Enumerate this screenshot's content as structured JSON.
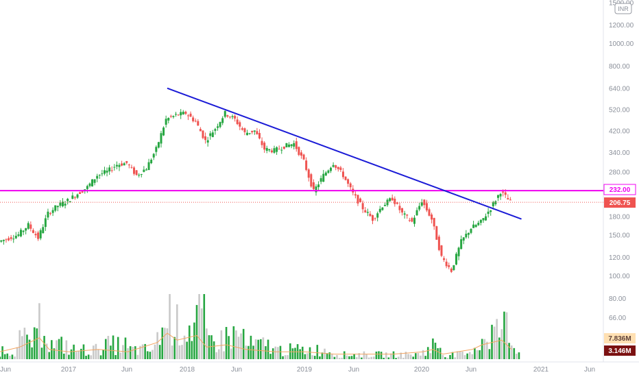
{
  "chart_data": {
    "type": "candlestick",
    "y_scale": "log",
    "currency_label": "INR",
    "price_ticks": [
      {
        "value": 1500,
        "label": "1500.00"
      },
      {
        "value": 1200,
        "label": "1200.00"
      },
      {
        "value": 1000,
        "label": "1000.00"
      },
      {
        "value": 800,
        "label": "800.00"
      },
      {
        "value": 640,
        "label": "640.00"
      },
      {
        "value": 520,
        "label": "520.00"
      },
      {
        "value": 420,
        "label": "420.00"
      },
      {
        "value": 340,
        "label": "340.00"
      },
      {
        "value": 280,
        "label": "280.00"
      },
      {
        "value": 180,
        "label": "180.00"
      },
      {
        "value": 150,
        "label": "150.00"
      },
      {
        "value": 120,
        "label": "120.00"
      },
      {
        "value": 100,
        "label": "100.00"
      },
      {
        "value": 80,
        "label": "80.00"
      },
      {
        "value": 66,
        "label": "66.00"
      }
    ],
    "x_ticks": [
      "Jun",
      "2017",
      "Jun",
      "2018",
      "Jun",
      "2019",
      "Jun",
      "2020",
      "Jun",
      "2021",
      "Jun"
    ],
    "badges": [
      {
        "label": "232.00",
        "value": 232,
        "color": "#f000f0",
        "style": "outline"
      },
      {
        "label": "206.75",
        "value": 206.75,
        "color": "#ef5350",
        "style": "filled"
      },
      {
        "label": "7.836M",
        "color": "#ffe0b2",
        "style": "volume-ma"
      },
      {
        "label": "3.146M",
        "color": "#7b1111",
        "style": "volume"
      }
    ],
    "horizontal_line": {
      "value": 232,
      "color": "#f000f0"
    },
    "last_price_line": {
      "value": 206.75,
      "color": "#ef5350"
    },
    "trendline": {
      "start": {
        "date": "2017-11",
        "price": 640
      },
      "end": {
        "date": "2020-11",
        "price": 175
      },
      "color": "#1a1ad6"
    },
    "price_series": [
      {
        "date": "2016-06",
        "price": 140
      },
      {
        "date": "2016-08",
        "price": 150
      },
      {
        "date": "2016-09",
        "price": 165
      },
      {
        "date": "2016-10",
        "price": 145
      },
      {
        "date": "2016-11",
        "price": 185
      },
      {
        "date": "2016-12",
        "price": 200
      },
      {
        "date": "2017-01",
        "price": 210
      },
      {
        "date": "2017-02",
        "price": 225
      },
      {
        "date": "2017-03",
        "price": 240
      },
      {
        "date": "2017-04",
        "price": 270
      },
      {
        "date": "2017-05",
        "price": 280
      },
      {
        "date": "2017-06",
        "price": 300
      },
      {
        "date": "2017-07",
        "price": 305
      },
      {
        "date": "2017-08",
        "price": 270
      },
      {
        "date": "2017-09",
        "price": 290
      },
      {
        "date": "2017-10",
        "price": 350
      },
      {
        "date": "2017-11",
        "price": 470
      },
      {
        "date": "2017-12",
        "price": 490
      },
      {
        "date": "2018-01",
        "price": 500
      },
      {
        "date": "2018-02",
        "price": 460
      },
      {
        "date": "2018-03",
        "price": 380
      },
      {
        "date": "2018-04",
        "price": 430
      },
      {
        "date": "2018-05",
        "price": 500
      },
      {
        "date": "2018-06",
        "price": 470
      },
      {
        "date": "2018-07",
        "price": 410
      },
      {
        "date": "2018-08",
        "price": 420
      },
      {
        "date": "2018-09",
        "price": 350
      },
      {
        "date": "2018-10",
        "price": 345
      },
      {
        "date": "2018-11",
        "price": 360
      },
      {
        "date": "2018-12",
        "price": 370
      },
      {
        "date": "2019-01",
        "price": 310
      },
      {
        "date": "2019-02",
        "price": 230
      },
      {
        "date": "2019-03",
        "price": 270
      },
      {
        "date": "2019-04",
        "price": 305
      },
      {
        "date": "2019-05",
        "price": 270
      },
      {
        "date": "2019-06",
        "price": 225
      },
      {
        "date": "2019-07",
        "price": 195
      },
      {
        "date": "2019-08",
        "price": 175
      },
      {
        "date": "2019-09",
        "price": 200
      },
      {
        "date": "2019-10",
        "price": 215
      },
      {
        "date": "2019-11",
        "price": 185
      },
      {
        "date": "2019-12",
        "price": 170
      },
      {
        "date": "2020-01",
        "price": 210
      },
      {
        "date": "2020-02",
        "price": 175
      },
      {
        "date": "2020-03",
        "price": 120
      },
      {
        "date": "2020-04",
        "price": 105
      },
      {
        "date": "2020-05",
        "price": 140
      },
      {
        "date": "2020-06",
        "price": 160
      },
      {
        "date": "2020-07",
        "price": 170
      },
      {
        "date": "2020-08",
        "price": 195
      },
      {
        "date": "2020-09",
        "price": 230
      },
      {
        "date": "2020-10",
        "price": 207
      }
    ],
    "volume_series": [
      {
        "date": "2016-06",
        "value": 2
      },
      {
        "date": "2016-08",
        "value": 4
      },
      {
        "date": "2016-10",
        "value": 8
      },
      {
        "date": "2016-11",
        "value": 3
      },
      {
        "date": "2017-01",
        "value": 2
      },
      {
        "date": "2017-04",
        "value": 3
      },
      {
        "date": "2017-07",
        "value": 2
      },
      {
        "date": "2017-10",
        "value": 6
      },
      {
        "date": "2017-11",
        "value": 10
      },
      {
        "date": "2017-12",
        "value": 7
      },
      {
        "date": "2018-02",
        "value": 9
      },
      {
        "date": "2018-03",
        "value": 4
      },
      {
        "date": "2018-05",
        "value": 5
      },
      {
        "date": "2018-07",
        "value": 3
      },
      {
        "date": "2018-10",
        "value": 2
      },
      {
        "date": "2019-01",
        "value": 2
      },
      {
        "date": "2019-04",
        "value": 1
      },
      {
        "date": "2019-07",
        "value": 1
      },
      {
        "date": "2019-10",
        "value": 1
      },
      {
        "date": "2020-01",
        "value": 2
      },
      {
        "date": "2020-02",
        "value": 3
      },
      {
        "date": "2020-03",
        "value": 1
      },
      {
        "date": "2020-06",
        "value": 3
      },
      {
        "date": "2020-07",
        "value": 5
      },
      {
        "date": "2020-08",
        "value": 6
      },
      {
        "date": "2020-09",
        "value": 7
      },
      {
        "date": "2020-10",
        "value": 3
      }
    ],
    "volume_ma_color": "#f4a460",
    "up_color": "#26a641",
    "down_color": "#ef5350"
  }
}
